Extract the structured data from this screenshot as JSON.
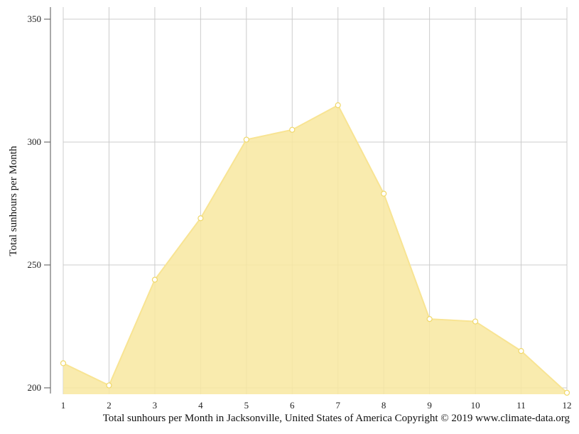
{
  "chart_data": {
    "type": "area",
    "x": [
      1,
      2,
      3,
      4,
      5,
      6,
      7,
      8,
      9,
      10,
      11,
      12
    ],
    "series": [
      {
        "values": [
          210,
          201,
          244,
          269,
          301,
          305,
          315,
          279,
          228,
          227,
          215,
          198
        ]
      }
    ],
    "ylabel": "Total sunhours per Month",
    "xlabel": "",
    "ylim": [
      200,
      350
    ],
    "yticks": [
      200,
      250,
      300,
      350
    ],
    "xticks": [
      1,
      2,
      3,
      4,
      5,
      6,
      7,
      8,
      9,
      10,
      11,
      12
    ],
    "grid": true,
    "colors": {
      "fill": "#f8e8a0",
      "line": "#f8e493",
      "marker_stroke": "#f0d86a",
      "grid": "#cccccc"
    }
  },
  "caption": "Total sunhours per Month in Jacksonville, United States of America Copyright © 2019 www.climate-data.org"
}
